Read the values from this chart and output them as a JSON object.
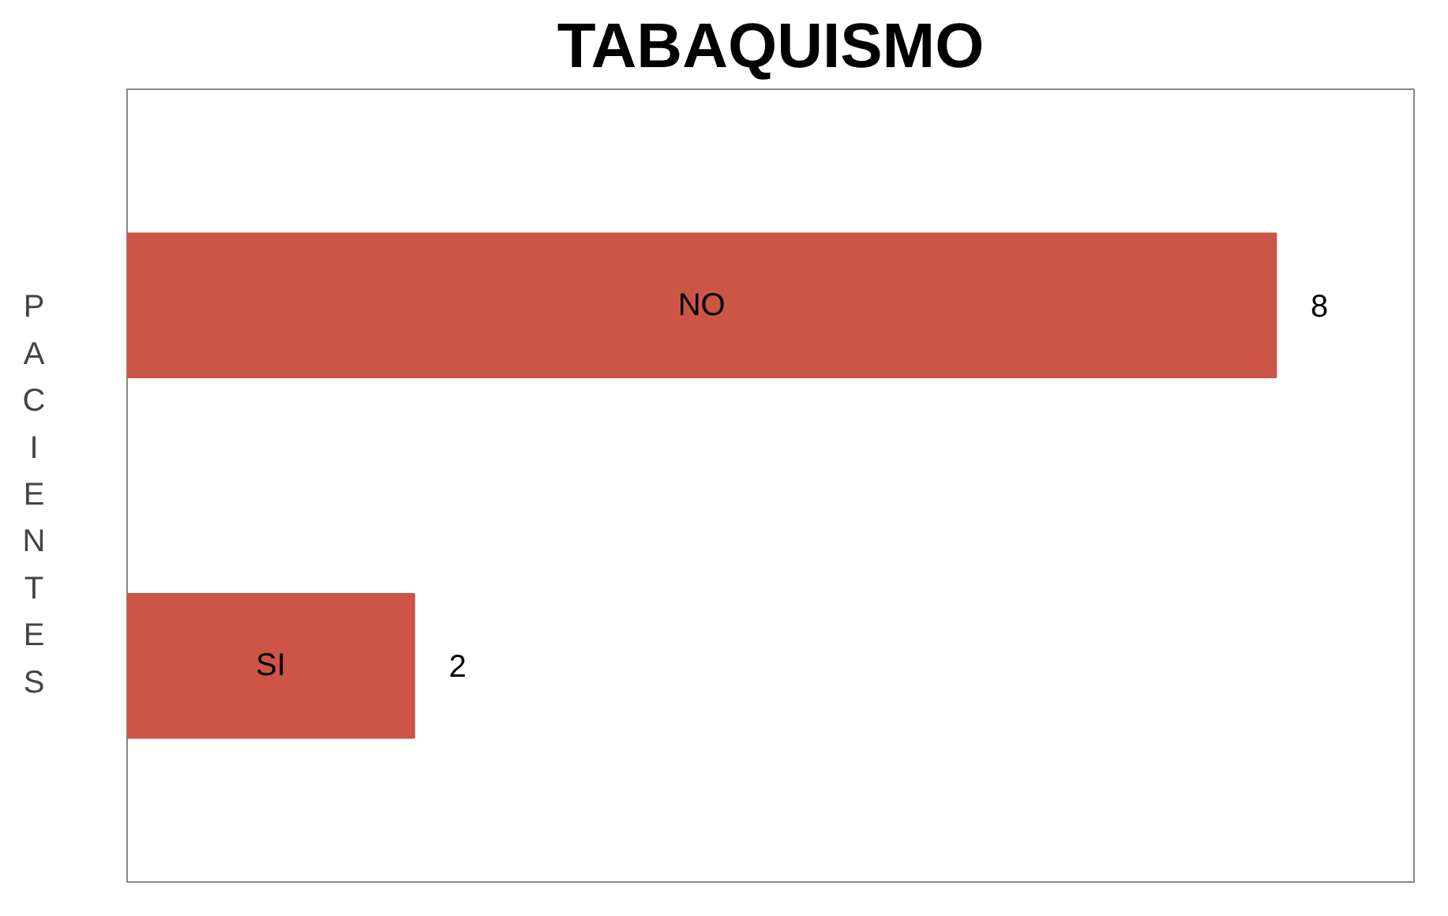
{
  "chart_data": {
    "type": "bar",
    "orientation": "horizontal",
    "title": "TABAQUISMO",
    "ylabel": "PACIENTES",
    "categories": [
      "NO",
      "SI"
    ],
    "values": [
      8,
      2
    ],
    "color": "#cd5545",
    "data_labels": true,
    "tick_labels": false,
    "grid": false
  }
}
